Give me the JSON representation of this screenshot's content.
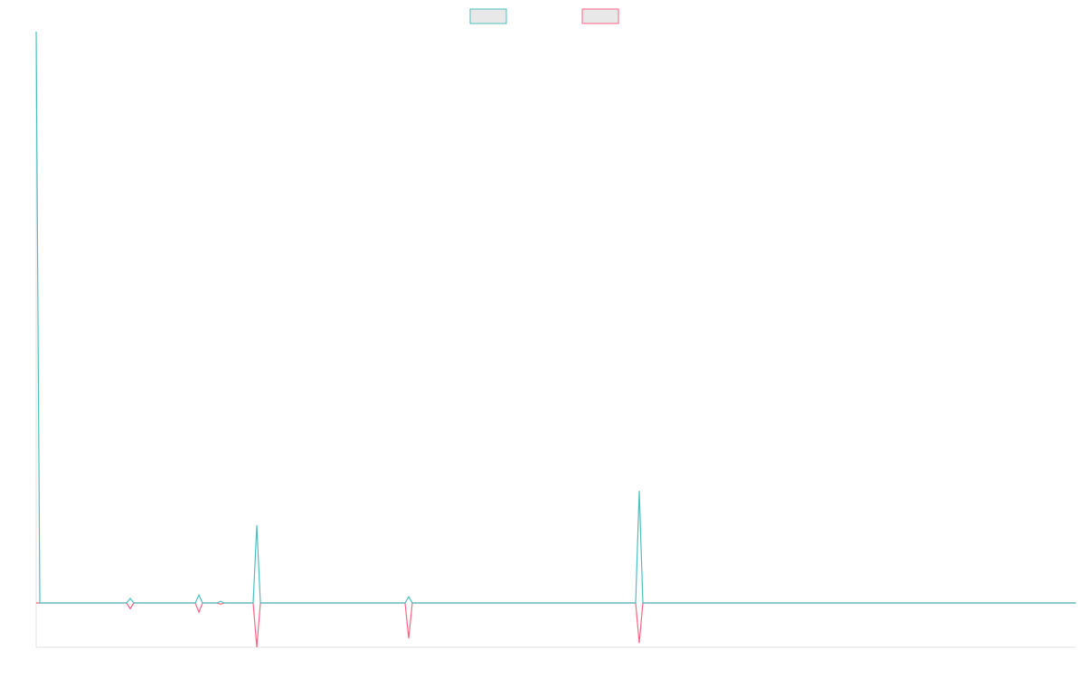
{
  "chart_data": {
    "type": "line",
    "x": [
      0,
      4,
      100,
      104,
      108,
      176,
      180,
      184,
      200,
      204,
      208,
      240,
      244,
      248,
      408,
      412,
      416,
      663,
      667,
      671,
      1150
    ],
    "series": [
      {
        "color": "#ff6384",
        "values": [
          0,
          0,
          0,
          -1.0,
          0,
          0,
          -1.6,
          0,
          0,
          -0.2,
          0,
          0,
          -7.75,
          0,
          0,
          -6.2,
          0,
          0,
          -7.0,
          0,
          0
        ]
      },
      {
        "color": "#4bc0c0",
        "values": [
          100,
          0,
          0,
          0.8,
          0,
          0,
          1.4,
          0,
          0,
          0.3,
          0,
          0,
          13.6,
          0,
          0,
          1.1,
          0,
          0,
          19.6,
          0,
          0
        ]
      }
    ],
    "xlim": [
      0,
      1150
    ],
    "ylim": [
      -7.75,
      100
    ],
    "legend": "top"
  }
}
